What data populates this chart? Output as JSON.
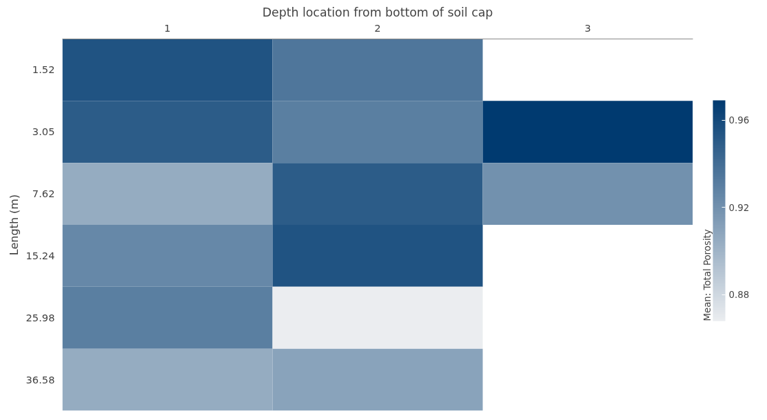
{
  "chart_data": {
    "type": "heatmap",
    "title": "Depth location from bottom of soil cap",
    "ylabel": "Length (m)",
    "clabel": "Mean: Total Porosity",
    "categories": [
      "1",
      "2",
      "3"
    ],
    "y_categories": [
      "1.52",
      "3.05",
      "7.62",
      "15.24",
      "25.98",
      "36.58"
    ],
    "cells": [
      [
        0.955,
        0.935,
        null
      ],
      [
        0.95,
        0.93,
        0.969
      ],
      [
        0.905,
        0.95,
        0.92
      ],
      [
        0.925,
        0.955,
        null
      ],
      [
        0.93,
        0.868,
        null
      ],
      [
        0.905,
        0.91,
        null
      ]
    ],
    "clim": [
      0.868,
      0.969
    ],
    "cticks": [
      0.88,
      0.92,
      0.96
    ],
    "colors": [
      "#ebedf0",
      "#003a70"
    ]
  }
}
